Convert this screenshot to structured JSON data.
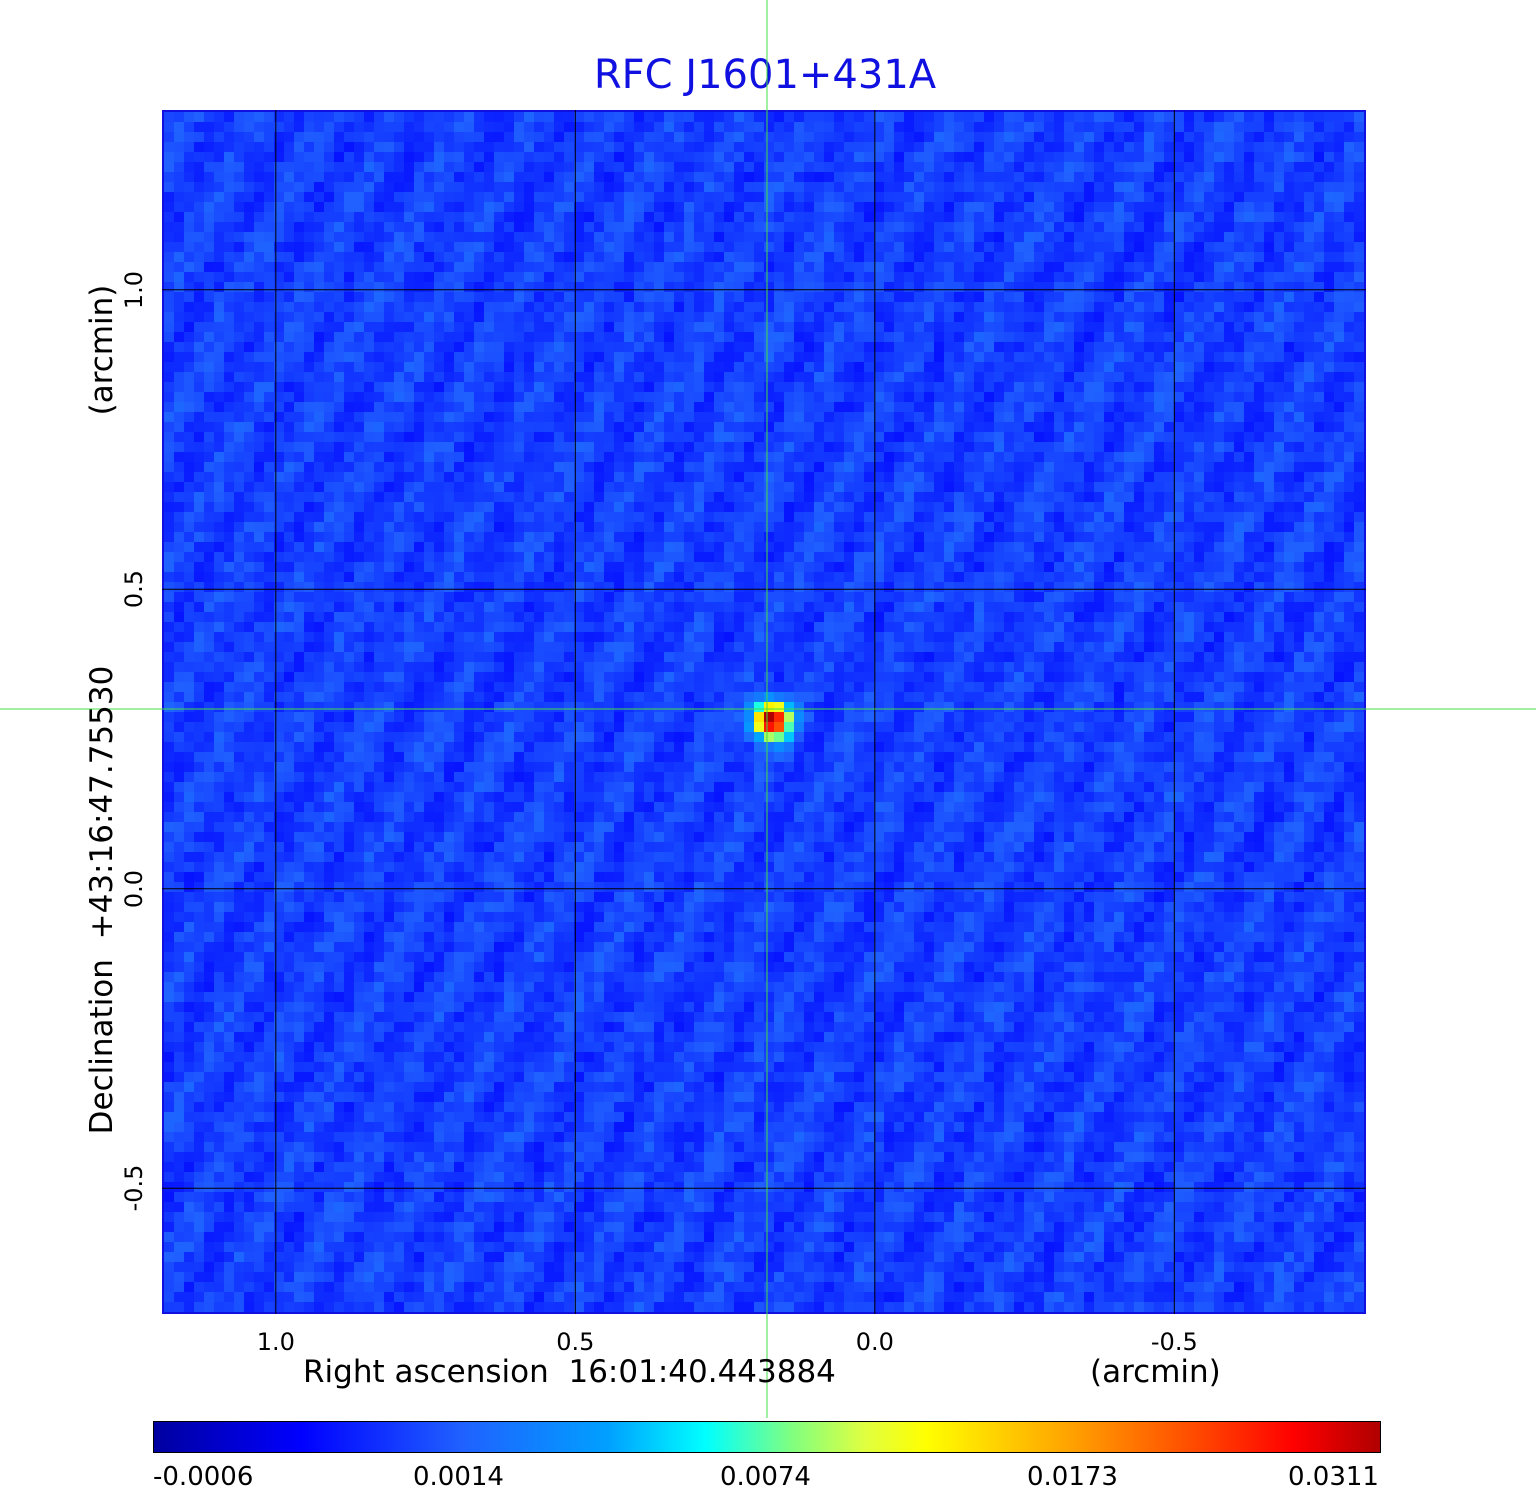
{
  "chart_data": {
    "type": "heatmap",
    "title": "RFC J1601+431A",
    "xlabel": "Right ascension  16:01:40.443884",
    "x_unit": "(arcmin)",
    "ylabel": "Declination  +43:16:47.75530",
    "y_unit": "(arcmin)",
    "x_ticks": [
      "1.0",
      "0.5",
      "0.0",
      "-0.5"
    ],
    "y_ticks": [
      "1.0",
      "0.5",
      "0.0",
      "-0.5"
    ],
    "x_tick_values": [
      1.0,
      0.5,
      0.0,
      -0.5
    ],
    "y_tick_values": [
      1.0,
      0.5,
      0.0,
      -0.5
    ],
    "xlim": [
      1.19,
      -0.82
    ],
    "ylim": [
      -0.71,
      1.3
    ],
    "grid": true,
    "colormap": "jet",
    "colorbar_ticks": [
      "-0.0006",
      "0.0014",
      "0.0074",
      "0.0173",
      "0.0311"
    ],
    "value_range": [
      -0.0006,
      0.0311
    ],
    "source": {
      "x": 0.18,
      "y": 0.29,
      "peak": 0.0311
    },
    "crosshair": {
      "x": 0.18,
      "y": 0.3,
      "color": "#44dd44"
    },
    "background_color": "#1f4fff",
    "title_color": "#1010e0"
  }
}
